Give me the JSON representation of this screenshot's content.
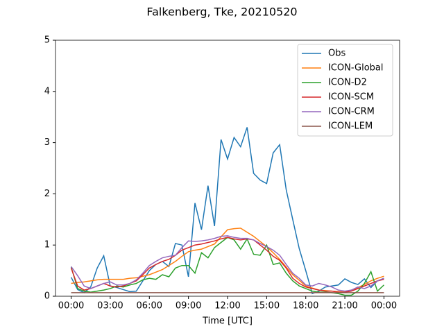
{
  "chart_data": {
    "type": "line",
    "title": "Falkenberg, Tke, 20210520",
    "x_label": "Time [UTC]",
    "x": [
      0,
      0.5,
      1,
      1.5,
      2,
      2.5,
      3,
      3.5,
      4,
      4.5,
      5,
      5.5,
      6,
      6.5,
      7,
      7.5,
      8,
      8.5,
      9,
      9.5,
      10,
      10.5,
      11,
      11.5,
      12,
      12.5,
      13,
      13.5,
      14,
      14.5,
      15,
      15.5,
      16,
      16.5,
      17,
      17.5,
      18,
      18.5,
      19,
      19.5,
      20,
      20.5,
      21,
      21.5,
      22,
      22.5,
      23,
      23.5,
      24
    ],
    "xlim": [
      -1.2,
      25.2
    ],
    "xticks": [
      {
        "value": 0,
        "label": "00:00"
      },
      {
        "value": 3,
        "label": "03:00"
      },
      {
        "value": 6,
        "label": "06:00"
      },
      {
        "value": 9,
        "label": "09:00"
      },
      {
        "value": 12,
        "label": "12:00"
      },
      {
        "value": 15,
        "label": "15:00"
      },
      {
        "value": 18,
        "label": "18:00"
      },
      {
        "value": 21,
        "label": "21:00"
      },
      {
        "value": 24,
        "label": "00:00"
      }
    ],
    "ylim": [
      0,
      5
    ],
    "yticks": [
      0,
      1,
      2,
      3,
      4,
      5
    ],
    "grid": false,
    "legend": "upper-right",
    "series": [
      {
        "name": "Obs",
        "color": "#1f77b4",
        "values": [
          0.37,
          0.13,
          0.07,
          0.18,
          0.55,
          0.79,
          0.2,
          0.17,
          0.13,
          0.09,
          0.1,
          0.3,
          0.5,
          0.62,
          0.68,
          0.58,
          1.03,
          1.0,
          0.38,
          1.82,
          1.3,
          2.16,
          1.37,
          3.06,
          2.68,
          3.1,
          2.92,
          3.3,
          2.4,
          2.27,
          2.2,
          2.8,
          2.96,
          2.08,
          1.5,
          0.93,
          0.5,
          0.05,
          0.1,
          0.18,
          0.2,
          0.22,
          0.34,
          0.27,
          0.23,
          0.34,
          0.17,
          0.3,
          0.35
        ]
      },
      {
        "name": "ICON-Global",
        "color": "#ff7f0e",
        "values": [
          0.25,
          0.27,
          0.28,
          0.3,
          0.32,
          0.33,
          0.33,
          0.33,
          0.33,
          0.35,
          0.36,
          0.39,
          0.42,
          0.47,
          0.52,
          0.6,
          0.68,
          0.78,
          0.87,
          0.9,
          0.92,
          0.97,
          1.02,
          1.16,
          1.3,
          1.32,
          1.33,
          1.25,
          1.17,
          1.07,
          0.97,
          0.85,
          0.72,
          0.57,
          0.42,
          0.31,
          0.2,
          0.16,
          0.12,
          0.11,
          0.1,
          0.09,
          0.08,
          0.12,
          0.17,
          0.23,
          0.3,
          0.35,
          0.39
        ]
      },
      {
        "name": "ICON-D2",
        "color": "#2ca02c",
        "values": [
          0.57,
          0.15,
          0.1,
          0.08,
          0.1,
          0.12,
          0.15,
          0.2,
          0.18,
          0.22,
          0.25,
          0.32,
          0.35,
          0.33,
          0.42,
          0.38,
          0.55,
          0.6,
          0.6,
          0.45,
          0.85,
          0.75,
          0.95,
          1.05,
          1.15,
          1.1,
          0.92,
          1.12,
          0.82,
          0.8,
          1.0,
          0.62,
          0.65,
          0.45,
          0.3,
          0.2,
          0.15,
          0.1,
          0.08,
          0.08,
          0.07,
          0.05,
          0.02,
          0.02,
          0.1,
          0.25,
          0.48,
          0.1,
          0.22
        ]
      },
      {
        "name": "ICON-SCM",
        "color": "#d62728",
        "values": [
          0.55,
          0.2,
          0.12,
          0.15,
          0.2,
          0.25,
          0.2,
          0.18,
          0.2,
          0.25,
          0.3,
          0.42,
          0.55,
          0.62,
          0.68,
          0.72,
          0.8,
          0.9,
          0.95,
          1.0,
          1.02,
          1.05,
          1.08,
          1.12,
          1.15,
          1.12,
          1.1,
          1.12,
          1.1,
          1.0,
          0.9,
          0.78,
          0.7,
          0.55,
          0.35,
          0.25,
          0.18,
          0.15,
          0.12,
          0.1,
          0.1,
          0.08,
          0.08,
          0.1,
          0.15,
          0.2,
          0.25,
          0.3,
          0.33
        ]
      },
      {
        "name": "ICON-CRM",
        "color": "#9467bd",
        "values": [
          0.58,
          0.4,
          0.2,
          0.15,
          0.2,
          0.25,
          0.28,
          0.22,
          0.22,
          0.25,
          0.32,
          0.45,
          0.6,
          0.68,
          0.75,
          0.78,
          0.8,
          0.95,
          1.08,
          1.07,
          1.08,
          1.1,
          1.13,
          1.17,
          1.18,
          1.15,
          1.13,
          1.13,
          1.1,
          1.03,
          0.97,
          0.9,
          0.8,
          0.62,
          0.45,
          0.35,
          0.22,
          0.2,
          0.25,
          0.22,
          0.18,
          0.12,
          0.1,
          0.12,
          0.18,
          0.15,
          0.2,
          0.3,
          0.35
        ]
      },
      {
        "name": "ICON-LEM",
        "color": "#8c564b",
        "values": [
          0.07,
          0.07,
          0.07,
          0.07,
          0.07,
          0.07,
          0.07,
          0.07,
          0.07,
          0.07,
          0.07,
          0.07,
          0.07,
          0.07,
          0.07,
          0.07,
          0.07,
          0.07,
          0.07,
          0.07,
          0.07,
          0.07,
          0.07,
          0.07,
          0.07,
          0.07,
          0.07,
          0.07,
          0.07,
          0.07,
          0.07,
          0.07,
          0.07,
          0.07,
          0.07,
          0.07,
          0.07,
          0.07,
          0.07,
          0.07,
          0.07,
          0.07,
          0.07,
          0.07,
          0.07,
          0.07,
          0.07,
          0.07,
          0.07
        ]
      }
    ]
  }
}
